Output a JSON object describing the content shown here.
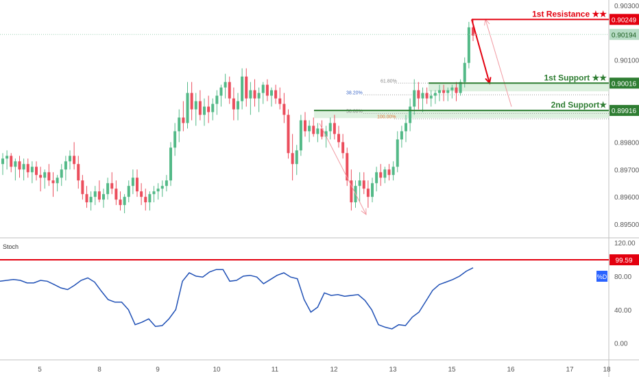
{
  "colors": {
    "up": "#53b987",
    "down": "#eb4d5c",
    "resistance": "#e3000f",
    "support": "#2e7d32",
    "support_zone": "#cfe9d2",
    "stoch": "#1e4fb5",
    "last_price_bg": "#b7dcc5",
    "fib": "#9e9e9e",
    "arrow_red": "#e3000f",
    "arrow_pink": "#f19aa2",
    "badge_blue": "#2962ff"
  },
  "chart_data": [
    {
      "type": "candlestick",
      "name": "price",
      "y_ticks": [
        "0.90300",
        "0.90100",
        "0.89800",
        "0.89700",
        "0.89600",
        "0.89500"
      ],
      "ylim": [
        0.8945,
        0.9032
      ],
      "x_ticks": [
        "5",
        "8",
        "9",
        "10",
        "11",
        "12",
        "13",
        "15",
        "16",
        "17",
        "18",
        "16:"
      ],
      "last_price": "0.90194",
      "ohlc": [
        [
          0.8972,
          0.8976,
          0.8968,
          0.8974
        ],
        [
          0.8974,
          0.8977,
          0.897,
          0.8975
        ],
        [
          0.8975,
          0.8976,
          0.8969,
          0.8971
        ],
        [
          0.8971,
          0.8974,
          0.8966,
          0.8973
        ],
        [
          0.8973,
          0.8975,
          0.8967,
          0.897
        ],
        [
          0.897,
          0.8974,
          0.8966,
          0.8972
        ],
        [
          0.8972,
          0.8974,
          0.8967,
          0.8969
        ],
        [
          0.8969,
          0.8973,
          0.8965,
          0.8971
        ],
        [
          0.8971,
          0.8973,
          0.8966,
          0.8968
        ],
        [
          0.8968,
          0.8971,
          0.8962,
          0.8967
        ],
        [
          0.8967,
          0.897,
          0.8963,
          0.8969
        ],
        [
          0.8969,
          0.8972,
          0.8964,
          0.8966
        ],
        [
          0.8966,
          0.8969,
          0.896,
          0.8965
        ],
        [
          0.8965,
          0.8968,
          0.8962,
          0.8967
        ],
        [
          0.8967,
          0.8972,
          0.8964,
          0.897
        ],
        [
          0.897,
          0.8975,
          0.8966,
          0.8973
        ],
        [
          0.8973,
          0.8977,
          0.897,
          0.8975
        ],
        [
          0.8975,
          0.898,
          0.897,
          0.8972
        ],
        [
          0.8972,
          0.8975,
          0.8963,
          0.8966
        ],
        [
          0.8966,
          0.8968,
          0.8959,
          0.8961
        ],
        [
          0.8961,
          0.8964,
          0.8956,
          0.8958
        ],
        [
          0.8958,
          0.8962,
          0.8955,
          0.896
        ],
        [
          0.896,
          0.8964,
          0.8957,
          0.8962
        ],
        [
          0.8962,
          0.8966,
          0.8958,
          0.8959
        ],
        [
          0.8959,
          0.8963,
          0.8956,
          0.8961
        ],
        [
          0.8961,
          0.8967,
          0.8959,
          0.8965
        ],
        [
          0.8965,
          0.8969,
          0.8961,
          0.8963
        ],
        [
          0.8963,
          0.8966,
          0.8957,
          0.8959
        ],
        [
          0.8959,
          0.8962,
          0.8955,
          0.8957
        ],
        [
          0.8957,
          0.8961,
          0.8954,
          0.896
        ],
        [
          0.896,
          0.8966,
          0.8958,
          0.8964
        ],
        [
          0.8964,
          0.897,
          0.8961,
          0.8967
        ],
        [
          0.8967,
          0.897,
          0.896,
          0.8962
        ],
        [
          0.8962,
          0.8965,
          0.8957,
          0.896
        ],
        [
          0.896,
          0.8963,
          0.8955,
          0.8958
        ],
        [
          0.8958,
          0.8962,
          0.8955,
          0.8961
        ],
        [
          0.8961,
          0.8964,
          0.8958,
          0.8962
        ],
        [
          0.8962,
          0.8965,
          0.8959,
          0.8963
        ],
        [
          0.8963,
          0.8966,
          0.896,
          0.8964
        ],
        [
          0.8964,
          0.8968,
          0.8962,
          0.8966
        ],
        [
          0.8966,
          0.898,
          0.8964,
          0.8978
        ],
        [
          0.8978,
          0.8987,
          0.8975,
          0.8984
        ],
        [
          0.8984,
          0.8992,
          0.898,
          0.8989
        ],
        [
          0.8989,
          0.8995,
          0.8984,
          0.8987
        ],
        [
          0.8987,
          0.9002,
          0.8985,
          0.8998
        ],
        [
          0.8998,
          0.9002,
          0.8988,
          0.8992
        ],
        [
          0.8992,
          0.8998,
          0.8986,
          0.8995
        ],
        [
          0.8995,
          0.8999,
          0.8988,
          0.899
        ],
        [
          0.899,
          0.8996,
          0.8986,
          0.8993
        ],
        [
          0.8993,
          0.8997,
          0.8987,
          0.8991
        ],
        [
          0.8991,
          0.8996,
          0.8988,
          0.8994
        ],
        [
          0.8994,
          0.8999,
          0.899,
          0.8997
        ],
        [
          0.8997,
          0.9001,
          0.8993,
          0.9
        ],
        [
          0.9,
          0.9005,
          0.8996,
          0.9002
        ],
        [
          0.9002,
          0.9004,
          0.8994,
          0.8996
        ],
        [
          0.8996,
          0.9,
          0.8988,
          0.8992
        ],
        [
          0.8992,
          0.8998,
          0.8988,
          0.8995
        ],
        [
          0.8995,
          0.9007,
          0.8992,
          0.9004
        ],
        [
          0.9004,
          0.9007,
          0.8993,
          0.8996
        ],
        [
          0.8996,
          0.9002,
          0.899,
          0.8999
        ],
        [
          0.8999,
          0.9003,
          0.8993,
          0.8996
        ],
        [
          0.8996,
          0.9,
          0.8991,
          0.8998
        ],
        [
          0.8998,
          0.9002,
          0.8994,
          0.9001
        ],
        [
          0.9001,
          0.9003,
          0.8995,
          0.8997
        ],
        [
          0.8997,
          0.9,
          0.8993,
          0.8999
        ],
        [
          0.8999,
          0.9001,
          0.8994,
          0.8996
        ],
        [
          0.8996,
          0.9,
          0.8992,
          0.8994
        ],
        [
          0.8994,
          0.8998,
          0.8987,
          0.899
        ],
        [
          0.899,
          0.8992,
          0.8974,
          0.8976
        ],
        [
          0.8976,
          0.8983,
          0.8966,
          0.8972
        ],
        [
          0.8972,
          0.8979,
          0.8968,
          0.8977
        ],
        [
          0.8977,
          0.899,
          0.8975,
          0.8988
        ],
        [
          0.8988,
          0.8991,
          0.8982,
          0.8984
        ],
        [
          0.8984,
          0.8988,
          0.898,
          0.8986
        ],
        [
          0.8986,
          0.8989,
          0.8982,
          0.8983
        ],
        [
          0.8983,
          0.8987,
          0.898,
          0.8985
        ],
        [
          0.8985,
          0.8988,
          0.8981,
          0.8982
        ],
        [
          0.8982,
          0.8986,
          0.8978,
          0.8984
        ],
        [
          0.8984,
          0.8989,
          0.8981,
          0.8987
        ],
        [
          0.8987,
          0.899,
          0.8981,
          0.8983
        ],
        [
          0.8983,
          0.8986,
          0.8978,
          0.898
        ],
        [
          0.898,
          0.8983,
          0.8974,
          0.8976
        ],
        [
          0.8976,
          0.8978,
          0.8964,
          0.8966
        ],
        [
          0.8966,
          0.897,
          0.8955,
          0.8958
        ],
        [
          0.8958,
          0.8966,
          0.8956,
          0.8964
        ],
        [
          0.8964,
          0.8969,
          0.8958,
          0.8966
        ],
        [
          0.8966,
          0.8969,
          0.8961,
          0.8963
        ],
        [
          0.8963,
          0.8966,
          0.8956,
          0.896
        ],
        [
          0.896,
          0.8967,
          0.8958,
          0.8965
        ],
        [
          0.8965,
          0.8971,
          0.8962,
          0.8969
        ],
        [
          0.8969,
          0.8972,
          0.8964,
          0.8967
        ],
        [
          0.8967,
          0.8971,
          0.8965,
          0.897
        ],
        [
          0.897,
          0.8972,
          0.8966,
          0.8968
        ],
        [
          0.8968,
          0.8973,
          0.8966,
          0.8971
        ],
        [
          0.8971,
          0.8984,
          0.8969,
          0.8981
        ],
        [
          0.8981,
          0.8986,
          0.8978,
          0.8984
        ],
        [
          0.8984,
          0.899,
          0.898,
          0.8987
        ],
        [
          0.8987,
          0.8996,
          0.8984,
          0.8993
        ],
        [
          0.8993,
          0.9003,
          0.899,
          0.8999
        ],
        [
          0.8999,
          0.9002,
          0.8992,
          0.8996
        ],
        [
          0.8996,
          0.9,
          0.8991,
          0.8998
        ],
        [
          0.8998,
          0.9,
          0.8994,
          0.8996
        ],
        [
          0.8996,
          0.8999,
          0.8993,
          0.8997
        ],
        [
          0.8997,
          0.8999,
          0.8994,
          0.8998
        ],
        [
          0.8998,
          0.9001,
          0.8995,
          0.8999
        ],
        [
          0.8999,
          0.9001,
          0.8995,
          0.8998
        ],
        [
          0.8998,
          0.9,
          0.8995,
          0.8999
        ],
        [
          0.8999,
          0.9001,
          0.8996,
          0.9
        ],
        [
          0.9,
          0.9002,
          0.8995,
          0.8998
        ],
        [
          0.8998,
          0.9003,
          0.8997,
          0.9002
        ],
        [
          0.9002,
          0.9011,
          0.9,
          0.9009
        ],
        [
          0.9009,
          0.9024,
          0.9007,
          0.9022
        ],
        [
          0.9022,
          0.9025,
          0.9017,
          0.9019
        ]
      ],
      "levels": [
        {
          "label": "1st Resistance ★★",
          "price": 0.90249,
          "price_label": "0.90249",
          "kind": "resistance"
        },
        {
          "label": "1st Support ★★",
          "price": 0.90016,
          "price_label": "0.90016",
          "kind": "support"
        },
        {
          "label": "2nd Support★",
          "price": 0.89916,
          "price_label": "0.89916",
          "kind": "support"
        }
      ],
      "fib_labels": [
        {
          "label": "61.80%",
          "price": 0.90016
        },
        {
          "label": "38.20%",
          "price": 0.89973
        },
        {
          "label": "50.00%",
          "price": 0.89905
        },
        {
          "label": "100.00%",
          "price": 0.89885
        }
      ]
    },
    {
      "type": "line",
      "name": "Stoch",
      "title": "Stoch",
      "y_ticks": [
        "120.00",
        "80.00",
        "40.00",
        "0.00"
      ],
      "ylim": [
        -20,
        125
      ],
      "level_label": "99.59",
      "level": 99.59,
      "series_label": "%D",
      "values": [
        74,
        75,
        76,
        75,
        72,
        72,
        75,
        74,
        70,
        66,
        64,
        69,
        75,
        78,
        73,
        62,
        52,
        49,
        49,
        40,
        22,
        25,
        29,
        20,
        21,
        29,
        40,
        74,
        84,
        80,
        79,
        85,
        88,
        88,
        74,
        75,
        80,
        81,
        79,
        71,
        76,
        81,
        84,
        79,
        77,
        52,
        37,
        43,
        60,
        57,
        58,
        56,
        57,
        58,
        51,
        40,
        22,
        19,
        17,
        22,
        21,
        31,
        37,
        50,
        63,
        70,
        73,
        76,
        80,
        86,
        90
      ]
    }
  ]
}
